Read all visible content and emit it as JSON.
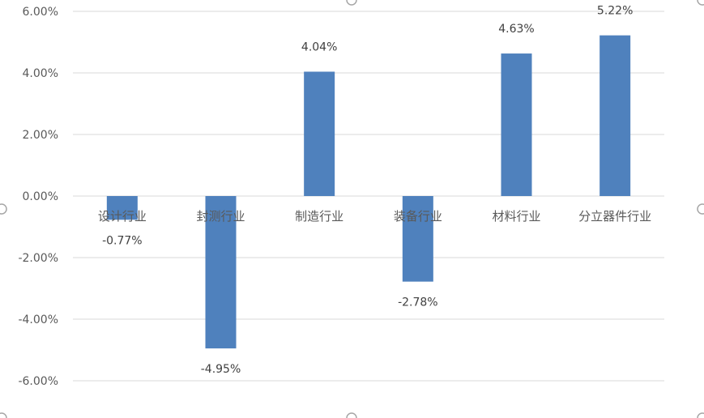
{
  "chart_data": {
    "type": "bar",
    "categories": [
      "设计行业",
      "封测行业",
      "制造行业",
      "装备行业",
      "材料行业",
      "分立器件行业"
    ],
    "values": [
      -0.77,
      -4.95,
      4.04,
      -2.78,
      4.63,
      5.22
    ],
    "data_labels": [
      "-0.77%",
      "-4.95%",
      "4.04%",
      "-2.78%",
      "4.63%",
      "5.22%"
    ],
    "y_ticks": [
      6,
      4,
      2,
      0,
      -2,
      -4,
      -6
    ],
    "y_tick_labels": [
      "6.00%",
      "4.00%",
      "2.00%",
      "0.00%",
      "-2.00%",
      "-4.00%",
      "-6.00%"
    ],
    "ylim": [
      -6,
      6
    ],
    "grid": true,
    "legend": "none",
    "bar_color": "#4f81bd",
    "title": "",
    "xlabel": "",
    "ylabel": ""
  }
}
